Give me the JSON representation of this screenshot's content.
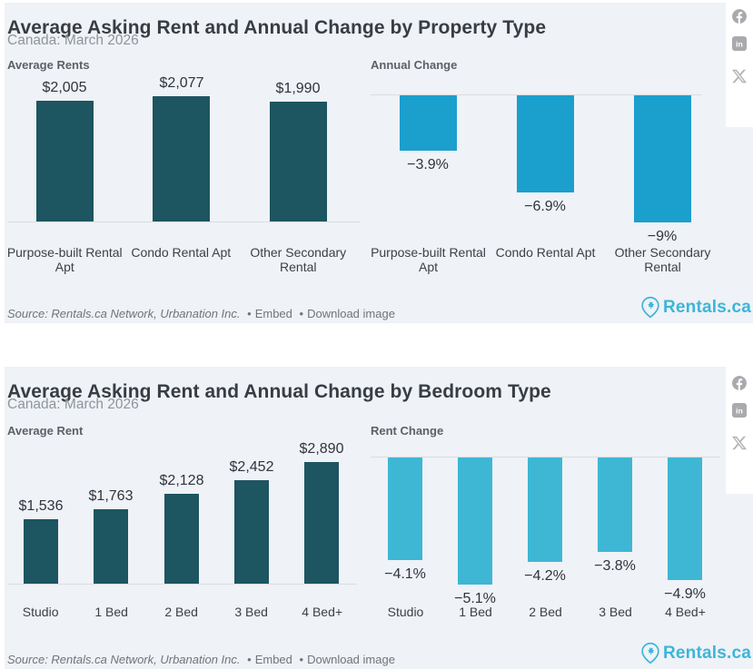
{
  "brand": {
    "logo_text": "Rentals.ca",
    "logo_color": "#3cb5d9",
    "pin_icon": "map-pin-maple-leaf-icon"
  },
  "social": {
    "facebook_icon": "facebook-icon",
    "linkedin_icon": "linkedin-icon",
    "x_icon": "x-icon",
    "icon_color": "#a9a9ae"
  },
  "colors": {
    "panel_background": "#eff2f6",
    "dark_teal_bar": "#1d5560",
    "blue_bar": "#1b9fcd",
    "light_blue_bar": "#3eb7d4",
    "axis_line": "#d9dce1"
  },
  "panels": [
    {
      "title": "Average Asking Rent and Annual Change by Property Type",
      "subtitle": "Canada: March 2026",
      "footer": {
        "source": "Source: Rentals.ca Network, Urbanation Inc.",
        "separator": "•",
        "embed_label": "Embed",
        "download_label": "Download image"
      }
    },
    {
      "title": "Average Asking Rent and Annual Change by Bedroom Type",
      "subtitle": "Canada: March 2026",
      "footer": {
        "source": "Source: Rentals.ca Network, Urbanation Inc.",
        "separator": "•",
        "embed_label": "Embed",
        "download_label": "Download image"
      }
    }
  ],
  "chart_data": [
    {
      "id": "average-rents-by-property-type",
      "type": "bar",
      "title": "Average Rents",
      "categories": [
        "Purpose-built Rental Apt",
        "Condo Rental Apt",
        "Other Secondary Rental"
      ],
      "values": [
        2005,
        2077,
        1990
      ],
      "labels": [
        "$2,005",
        "$2,077",
        "$1,990"
      ],
      "bar_color": "#1d5560",
      "direction": "up",
      "ylim": [
        0,
        2077
      ],
      "grid": false,
      "legend": false
    },
    {
      "id": "annual-change-by-property-type",
      "type": "bar",
      "title": "Annual Change",
      "categories": [
        "Purpose-built Rental Apt",
        "Condo Rental Apt",
        "Other Secondary Rental"
      ],
      "values": [
        -3.9,
        -6.9,
        -9
      ],
      "labels": [
        "−3.9%",
        "−6.9%",
        "−9%"
      ],
      "bar_color": "#1b9fcd",
      "direction": "down",
      "ylim": [
        -9,
        0
      ],
      "grid": false,
      "legend": false
    },
    {
      "id": "average-rent-by-bedroom-type",
      "type": "bar",
      "title": "Average Rent",
      "categories": [
        "Studio",
        "1 Bed",
        "2 Bed",
        "3 Bed",
        "4 Bed+"
      ],
      "values": [
        1536,
        1763,
        2128,
        2452,
        2890
      ],
      "labels": [
        "$1,536",
        "$1,763",
        "$2,128",
        "$2,452",
        "$2,890"
      ],
      "bar_color": "#1d5560",
      "direction": "up",
      "ylim": [
        0,
        2890
      ],
      "grid": false,
      "legend": false
    },
    {
      "id": "rent-change-by-bedroom-type",
      "type": "bar",
      "title": "Rent Change",
      "categories": [
        "Studio",
        "1 Bed",
        "2 Bed",
        "3 Bed",
        "4 Bed+"
      ],
      "values": [
        -4.1,
        -5.1,
        -4.2,
        -3.8,
        -4.9
      ],
      "labels": [
        "−4.1%",
        "−5.1%",
        "−4.2%",
        "−3.8%",
        "−4.9%"
      ],
      "bar_color": "#3eb7d4",
      "direction": "down",
      "ylim": [
        -5.1,
        0
      ],
      "grid": false,
      "legend": false
    }
  ]
}
